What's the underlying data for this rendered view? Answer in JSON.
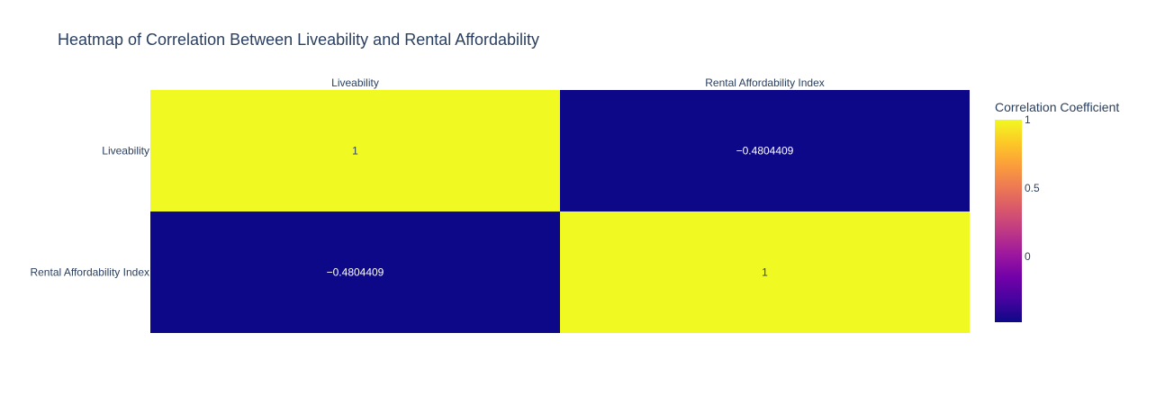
{
  "chart_data": {
    "type": "heatmap",
    "title": "Heatmap of Correlation Between Liveability and Rental Affordability",
    "x_categories": [
      "Liveability",
      "Rental Affordability Index"
    ],
    "y_categories": [
      "Liveability",
      "Rental Affordability Index"
    ],
    "z": [
      [
        1,
        -0.4804409
      ],
      [
        -0.4804409,
        1
      ]
    ],
    "z_labels": [
      [
        "1",
        "−0.4804409"
      ],
      [
        "−0.4804409",
        "1"
      ]
    ],
    "x_axis_side": "top",
    "colorbar": {
      "title": "Correlation Coefficient",
      "range": [
        -0.4804409,
        1
      ],
      "ticks": [
        {
          "value": 1,
          "label": "1"
        },
        {
          "value": 0.5,
          "label": "0.5"
        },
        {
          "value": 0,
          "label": "0"
        }
      ],
      "colorscale": [
        "#0d0887",
        "#46039f",
        "#7201a8",
        "#9c179e",
        "#bd3786",
        "#d8576b",
        "#ed7953",
        "#fb9f3a",
        "#fdca26",
        "#f0f921"
      ]
    },
    "grid": false,
    "legend": "none"
  }
}
